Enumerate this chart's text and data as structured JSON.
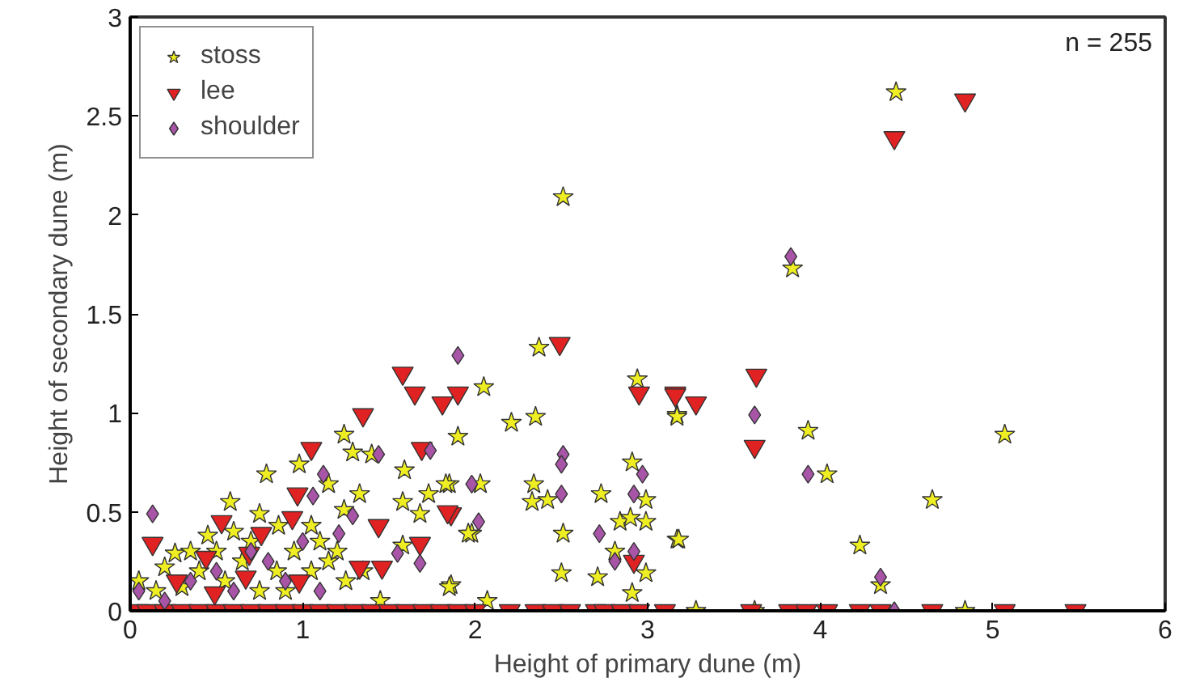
{
  "chart_data": {
    "type": "scatter",
    "xlabel": "Height of primary dune (m)",
    "ylabel": "Height of secondary dune (m)",
    "xlim": [
      0,
      6
    ],
    "xticks": [
      0,
      1,
      2,
      3,
      4,
      5,
      6
    ],
    "ylim": [
      0,
      3
    ],
    "yticks": [
      0,
      0.5,
      1,
      1.5,
      2,
      2.5,
      3
    ],
    "grid": false,
    "legend": "top left",
    "annotations": [
      "n = 255"
    ],
    "series": [
      {
        "name": "stoss",
        "color": "#eeee22",
        "marker": "star",
        "x": [
          4.44,
          3.84,
          2.51,
          3.17,
          3.93,
          4.04,
          5.07,
          4.65,
          3.17,
          4.23,
          4.35,
          3.28,
          3.62,
          4.84,
          2.99,
          2.99,
          2.99,
          2.37,
          2.05,
          2.21,
          2.35,
          1.9,
          2.94,
          3.17,
          2.91,
          2.73,
          2.34,
          2.33,
          2.42,
          2.03,
          1.98,
          2.51,
          2.5,
          2.71,
          2.91,
          3.18,
          2.81,
          2.84,
          2.9,
          1.86,
          2.07,
          1.85,
          1.24,
          1.29,
          1.4,
          0.79,
          0.98,
          1.15,
          1.59,
          0.58,
          1.33,
          1.83,
          1.73,
          1.58,
          1.24,
          1.68,
          0.75,
          1.05,
          0.86,
          0.26,
          1.85,
          1.96,
          1.58,
          0.05,
          0.15,
          0.3,
          0.4,
          0.55,
          0.65,
          0.75,
          0.85,
          0.95,
          1.05,
          1.15,
          1.25,
          1.35,
          1.45,
          0.5,
          0.2,
          0.9,
          1.1,
          0.7,
          0.35,
          0.6,
          0.45,
          1.2
        ],
        "values": [
          2.62,
          1.73,
          2.09,
          0.99,
          0.91,
          0.69,
          0.89,
          0.56,
          0.36,
          0.33,
          0.13,
          0,
          0,
          0,
          0.56,
          0.45,
          0.19,
          1.33,
          1.13,
          0.95,
          0.98,
          0.88,
          1.17,
          0.98,
          0.75,
          0.59,
          0.64,
          0.55,
          0.56,
          0.64,
          0.39,
          0.39,
          0.19,
          0.17,
          0.09,
          0.36,
          0.3,
          0.45,
          0.47,
          0.13,
          0.05,
          0.64,
          0.89,
          0.8,
          0.79,
          0.69,
          0.74,
          0.64,
          0.71,
          0.55,
          0.59,
          0.64,
          0.59,
          0.55,
          0.51,
          0.49,
          0.49,
          0.43,
          0.43,
          0.29,
          0.12,
          0.39,
          0.33,
          0.15,
          0.1,
          0.12,
          0.2,
          0.15,
          0.25,
          0.1,
          0.2,
          0.3,
          0.2,
          0.25,
          0.15,
          0.2,
          0.05,
          0.3,
          0.22,
          0.1,
          0.35,
          0.35,
          0.3,
          0.4,
          0.38,
          0.3
        ]
      },
      {
        "name": "lee",
        "color": "#e02222",
        "marker": "triangle",
        "x": [
          4.84,
          4.43,
          2.49,
          1.9,
          2.95,
          3.16,
          3.63,
          3.62,
          3.16,
          3.28,
          2.92,
          1.86,
          1.58,
          1.65,
          1.81,
          1.35,
          1.05,
          1.69,
          0.97,
          1.84,
          1.44,
          1.68,
          1.33,
          1.46,
          0.53,
          0.94,
          0.76,
          0.13,
          0.69,
          0.44,
          0.98,
          0.67,
          0.27,
          0.49,
          0.05,
          0.1,
          0.2,
          0.3,
          0.4,
          0.5,
          0.6,
          0.7,
          0.8,
          0.9,
          1.0,
          1.1,
          1.2,
          1.3,
          1.4,
          1.5,
          1.6,
          1.7,
          1.8,
          1.9,
          2.0,
          2.2,
          2.35,
          2.45,
          2.55,
          2.7,
          2.75,
          2.85,
          2.95,
          3.1,
          3.6,
          3.82,
          3.92,
          4.04,
          4.23,
          4.35,
          4.65,
          5.07,
          5.48
        ],
        "values": [
          2.58,
          2.39,
          1.35,
          1.1,
          1.1,
          1.1,
          1.19,
          0.83,
          1.09,
          1.05,
          0.25,
          0.49,
          1.2,
          1.1,
          1.05,
          0.99,
          0.82,
          0.82,
          0.59,
          0.5,
          0.43,
          0.34,
          0.22,
          0.22,
          0.45,
          0.47,
          0.39,
          0.34,
          0.29,
          0.27,
          0.15,
          0.17,
          0.15,
          0.09,
          0,
          0,
          0,
          0,
          0,
          0,
          0,
          0,
          0,
          0,
          0,
          0,
          0,
          0,
          0,
          0,
          0,
          0,
          0,
          0,
          0,
          0,
          0,
          0,
          0,
          0,
          0,
          0,
          0,
          0,
          0,
          0,
          0,
          0,
          0,
          0,
          0,
          0,
          0
        ]
      },
      {
        "name": "shoulder",
        "color": "#a855a8",
        "marker": "diamond",
        "x": [
          3.83,
          1.9,
          0.13,
          1.44,
          1.12,
          1.06,
          1.29,
          1.21,
          1.74,
          1.98,
          1.68,
          1.55,
          2.02,
          2.51,
          2.5,
          2.5,
          2.97,
          2.92,
          2.72,
          2.81,
          2.92,
          3.62,
          3.93,
          4.35,
          4.43,
          0.05,
          0.2,
          0.35,
          0.5,
          0.6,
          0.8,
          0.9,
          1.0,
          1.1,
          0.7
        ],
        "values": [
          1.79,
          1.29,
          0.49,
          0.79,
          0.69,
          0.58,
          0.48,
          0.39,
          0.81,
          0.64,
          0.24,
          0.29,
          0.45,
          0.79,
          0.74,
          0.59,
          0.69,
          0.59,
          0.39,
          0.25,
          0.3,
          0.99,
          0.69,
          0.17,
          0,
          0.1,
          0.05,
          0.15,
          0.2,
          0.1,
          0.25,
          0.15,
          0.35,
          0.1,
          0.3
        ]
      }
    ]
  }
}
